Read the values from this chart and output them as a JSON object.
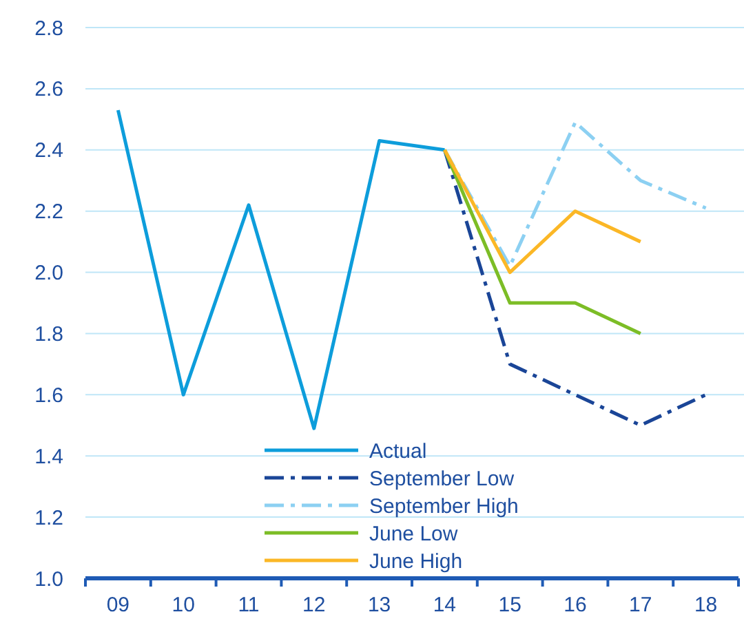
{
  "chart_data": {
    "type": "line",
    "categories": [
      "09",
      "10",
      "11",
      "12",
      "13",
      "14",
      "15",
      "16",
      "17",
      "18"
    ],
    "ylim": [
      1.0,
      2.8
    ],
    "yticks": [
      {
        "value": 1,
        "label": "1.0"
      },
      1.2,
      1.4,
      1.6,
      1.8,
      {
        "value": 2,
        "label": "2.0"
      },
      2.2,
      2.4,
      2.6,
      2.8
    ],
    "grid": "y",
    "legend": "bottom",
    "marker": "none",
    "series": [
      {
        "name": "Actual",
        "color": "#0d9ddb",
        "line_style": "solid",
        "values": [
          2.53,
          1.6,
          2.22,
          1.49,
          2.43,
          2.4,
          null,
          null,
          null,
          null
        ]
      },
      {
        "name": "September Low",
        "color": "#1a4597",
        "line_style": "dashed",
        "values": [
          null,
          null,
          null,
          null,
          null,
          2.4,
          1.7,
          1.6,
          1.5,
          1.6
        ]
      },
      {
        "name": "September High",
        "color": "#8cd0f2",
        "line_style": "dashed",
        "values": [
          null,
          null,
          null,
          null,
          null,
          2.4,
          2.02,
          2.49,
          2.3,
          2.21
        ]
      },
      {
        "name": "June Low",
        "color": "#7cbd26",
        "line_style": "solid",
        "values": [
          null,
          null,
          null,
          null,
          null,
          2.4,
          1.9,
          1.9,
          1.8,
          null
        ]
      },
      {
        "name": "June High",
        "color": "#fbb726",
        "line_style": "solid",
        "values": [
          null,
          null,
          null,
          null,
          null,
          2.4,
          2.0,
          2.2,
          2.1,
          null
        ]
      }
    ]
  }
}
